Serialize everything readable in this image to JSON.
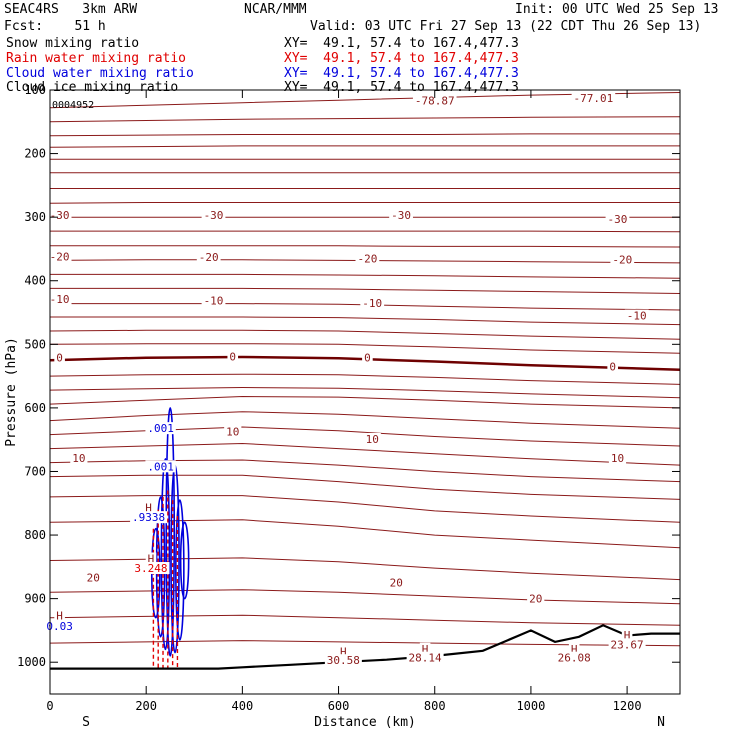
{
  "header": {
    "model": "SEAC4RS   3km ARW",
    "org": "NCAR/MMM",
    "init": "Init: 00 UTC Wed 25 Sep 13",
    "fcst": "Fcst:    51 h",
    "valid": "Valid: 03 UTC Fri 27 Sep 13 (22 CDT Thu 26 Sep 13)"
  },
  "fields": [
    {
      "label": "Snow mixing ratio",
      "xy": "XY=  49.1, 57.4 to 167.4,477.3",
      "color": "#000000"
    },
    {
      "label": "Rain water mixing ratio",
      "xy": "XY=  49.1, 57.4 to 167.4,477.3",
      "color": "#e00000"
    },
    {
      "label": "Cloud water mixing ratio",
      "xy": "XY=  49.1, 57.4 to 167.4,477.3",
      "color": "#0000dd"
    },
    {
      "label": "Cloud ice mixing ratio",
      "xy": "XY=  49.1, 57.4 to 167.4,477.3",
      "color": "#000000"
    }
  ],
  "chart_data": {
    "type": "contour cross-section",
    "xlabel": "Distance (km)",
    "ylabel": "Pressure (hPa)",
    "xlim": [
      0,
      1310
    ],
    "ylim": [
      1050,
      100
    ],
    "x_ticks": [
      0,
      200,
      400,
      600,
      800,
      1000,
      1200
    ],
    "y_ticks": [
      100,
      200,
      300,
      400,
      500,
      600,
      700,
      800,
      900,
      1000
    ],
    "x_tick_labels": [
      "0",
      "200",
      "400",
      "600",
      "800",
      "1000",
      "1200"
    ],
    "y_tick_labels": [
      "100",
      "200",
      "300",
      "400",
      "500",
      "600",
      "700",
      "800",
      "900",
      "1000"
    ],
    "direction_left": "S",
    "direction_right": "N",
    "top_small_label": "0004952",
    "temperature_contours": [
      {
        "p": [
          128,
          124,
          120,
          116,
          112,
          108,
          104
        ]
      },
      {
        "p": [
          150,
          148,
          146,
          145,
          144,
          143,
          142
        ]
      },
      {
        "p": [
          172,
          171,
          170,
          170,
          170,
          169,
          169
        ]
      },
      {
        "p": [
          190,
          189,
          188,
          188,
          188,
          188,
          188
        ]
      },
      {
        "p": [
          209,
          209,
          209,
          209,
          209,
          209,
          209
        ]
      },
      {
        "p": [
          230,
          230,
          230,
          230,
          230,
          230,
          230
        ]
      },
      {
        "p": [
          255,
          255,
          255,
          255,
          255,
          255,
          255
        ]
      },
      {
        "p": [
          278,
          277,
          277,
          277,
          277,
          277,
          277
        ]
      },
      {
        "p": [
          300,
          300,
          300,
          300,
          300,
          300,
          300
        ],
        "label": "-30"
      },
      {
        "p": [
          322,
          322,
          322,
          322,
          322,
          322,
          323
        ]
      },
      {
        "p": [
          345,
          345,
          345,
          345,
          346,
          346,
          347
        ]
      },
      {
        "p": [
          368,
          367,
          367,
          368,
          369,
          370,
          372
        ],
        "label": "-20"
      },
      {
        "p": [
          390,
          390,
          390,
          391,
          392,
          394,
          396
        ]
      },
      {
        "p": [
          412,
          412,
          412,
          413,
          415,
          417,
          420
        ]
      },
      {
        "p": [
          436,
          436,
          436,
          437,
          440,
          443,
          446
        ],
        "label": "-10"
      },
      {
        "p": [
          457,
          457,
          457,
          458,
          461,
          465,
          469
        ]
      },
      {
        "p": [
          479,
          478,
          478,
          479,
          483,
          487,
          492
        ]
      },
      {
        "p": [
          500,
          499,
          499,
          500,
          504,
          509,
          514
        ]
      },
      {
        "p": [
          525,
          521,
          520,
          522,
          527,
          533,
          540
        ],
        "label": "0"
      },
      {
        "p": [
          550,
          548,
          547,
          548,
          552,
          557,
          563
        ]
      },
      {
        "p": [
          572,
          570,
          568,
          569,
          573,
          578,
          584
        ]
      },
      {
        "p": [
          594,
          588,
          582,
          583,
          588,
          594,
          600
        ]
      },
      {
        "p": [
          620,
          612,
          606,
          610,
          617,
          624,
          632
        ]
      },
      {
        "p": [
          642,
          636,
          630,
          636,
          645,
          652,
          660
        ],
        "label": "10"
      },
      {
        "p": [
          664,
          660,
          656,
          664,
          672,
          680,
          690
        ]
      },
      {
        "p": [
          686,
          683,
          682,
          690,
          700,
          708,
          716
        ]
      },
      {
        "p": [
          708,
          706,
          706,
          716,
          728,
          736,
          744
        ]
      },
      {
        "p": [
          740,
          738,
          738,
          748,
          762,
          770,
          780
        ]
      },
      {
        "p": [
          780,
          778,
          776,
          786,
          800,
          808,
          820
        ]
      },
      {
        "p": [
          840,
          838,
          836,
          842,
          852,
          860,
          870
        ]
      },
      {
        "p": [
          890,
          888,
          886,
          890,
          896,
          902,
          908
        ],
        "label": "20"
      },
      {
        "p": [
          930,
          928,
          926,
          930,
          934,
          938,
          942
        ]
      },
      {
        "p": [
          970,
          968,
          966,
          968,
          970,
          972,
          974
        ]
      }
    ],
    "contour_x": [
      0,
      200,
      400,
      600,
      800,
      1000,
      1310
    ],
    "terrain_line": {
      "x": [
        0,
        100,
        200,
        300,
        350,
        400,
        500,
        600,
        700,
        800,
        900,
        950,
        1000,
        1050,
        1100,
        1150,
        1200,
        1250,
        1310
      ],
      "p": [
        1010,
        1010,
        1010,
        1010,
        1010,
        1008,
        1004,
        1000,
        996,
        990,
        982,
        966,
        950,
        968,
        960,
        942,
        958,
        955,
        955
      ]
    },
    "labels": [
      {
        "text": "-77.01",
        "x": 1130,
        "p": 116
      },
      {
        "text": "-78.87",
        "x": 800,
        "p": 120
      },
      {
        "text": "-30",
        "x": 20,
        "p": 300
      },
      {
        "text": "-30",
        "x": 340,
        "p": 300
      },
      {
        "text": "-30",
        "x": 730,
        "p": 300
      },
      {
        "text": "-30",
        "x": 1180,
        "p": 306
      },
      {
        "text": "-20",
        "x": 20,
        "p": 365
      },
      {
        "text": "-20",
        "x": 330,
        "p": 366
      },
      {
        "text": "-20",
        "x": 660,
        "p": 368
      },
      {
        "text": "-20",
        "x": 1190,
        "p": 370
      },
      {
        "text": "-10",
        "x": 20,
        "p": 432
      },
      {
        "text": "-10",
        "x": 340,
        "p": 434
      },
      {
        "text": "-10",
        "x": 670,
        "p": 438
      },
      {
        "text": "-10",
        "x": 1220,
        "p": 458
      },
      {
        "text": "0",
        "x": 20,
        "p": 524
      },
      {
        "text": "0",
        "x": 380,
        "p": 522
      },
      {
        "text": "0",
        "x": 660,
        "p": 524
      },
      {
        "text": "0",
        "x": 1170,
        "p": 538
      },
      {
        "text": "10",
        "x": 60,
        "p": 682
      },
      {
        "text": "10",
        "x": 380,
        "p": 640
      },
      {
        "text": "10",
        "x": 670,
        "p": 652
      },
      {
        "text": "10",
        "x": 1180,
        "p": 682
      },
      {
        "text": "20",
        "x": 90,
        "p": 870
      },
      {
        "text": "20",
        "x": 720,
        "p": 878
      },
      {
        "text": "20",
        "x": 1010,
        "p": 903
      },
      {
        "text": ".001",
        "x": 230,
        "p": 635
      },
      {
        "text": ".001",
        "x": 230,
        "p": 695
      },
      {
        "text": "H",
        "x": 610,
        "p": 986
      },
      {
        "text": "30.58",
        "x": 610,
        "p": 1000
      },
      {
        "text": "H",
        "x": 780,
        "p": 982
      },
      {
        "text": "28.14",
        "x": 780,
        "p": 996
      },
      {
        "text": "H",
        "x": 1090,
        "p": 982
      },
      {
        "text": "26.08",
        "x": 1090,
        "p": 996
      },
      {
        "text": "H",
        "x": 1200,
        "p": 960
      },
      {
        "text": "23.67",
        "x": 1200,
        "p": 975
      },
      {
        "text": "H",
        "x": 205,
        "p": 760
      },
      {
        "text": ".9338",
        "x": 205,
        "p": 775
      },
      {
        "text": "H",
        "x": 210,
        "p": 840
      },
      {
        "text": "3.248",
        "x": 210,
        "p": 855
      },
      {
        "text": "H",
        "x": 20,
        "p": 930
      },
      {
        "text": "0.03",
        "x": 20,
        "p": 946
      }
    ],
    "cloud_water": [
      {
        "x": 250,
        "p1": 600,
        "p2": 990
      },
      {
        "x": 240,
        "p1": 680,
        "p2": 980
      },
      {
        "x": 260,
        "p1": 690,
        "p2": 985
      },
      {
        "x": 230,
        "p1": 740,
        "p2": 960
      },
      {
        "x": 270,
        "p1": 745,
        "p2": 965
      },
      {
        "x": 220,
        "p1": 790,
        "p2": 930
      },
      {
        "x": 280,
        "p1": 780,
        "p2": 900
      }
    ],
    "rain_water": [
      {
        "x": 215,
        "p1": 790,
        "p2": 1010
      },
      {
        "x": 225,
        "p1": 760,
        "p2": 1010
      },
      {
        "x": 235,
        "p1": 740,
        "p2": 1010
      },
      {
        "x": 245,
        "p1": 730,
        "p2": 1010
      },
      {
        "x": 255,
        "p1": 745,
        "p2": 1010
      },
      {
        "x": 265,
        "p1": 770,
        "p2": 1010
      }
    ]
  }
}
